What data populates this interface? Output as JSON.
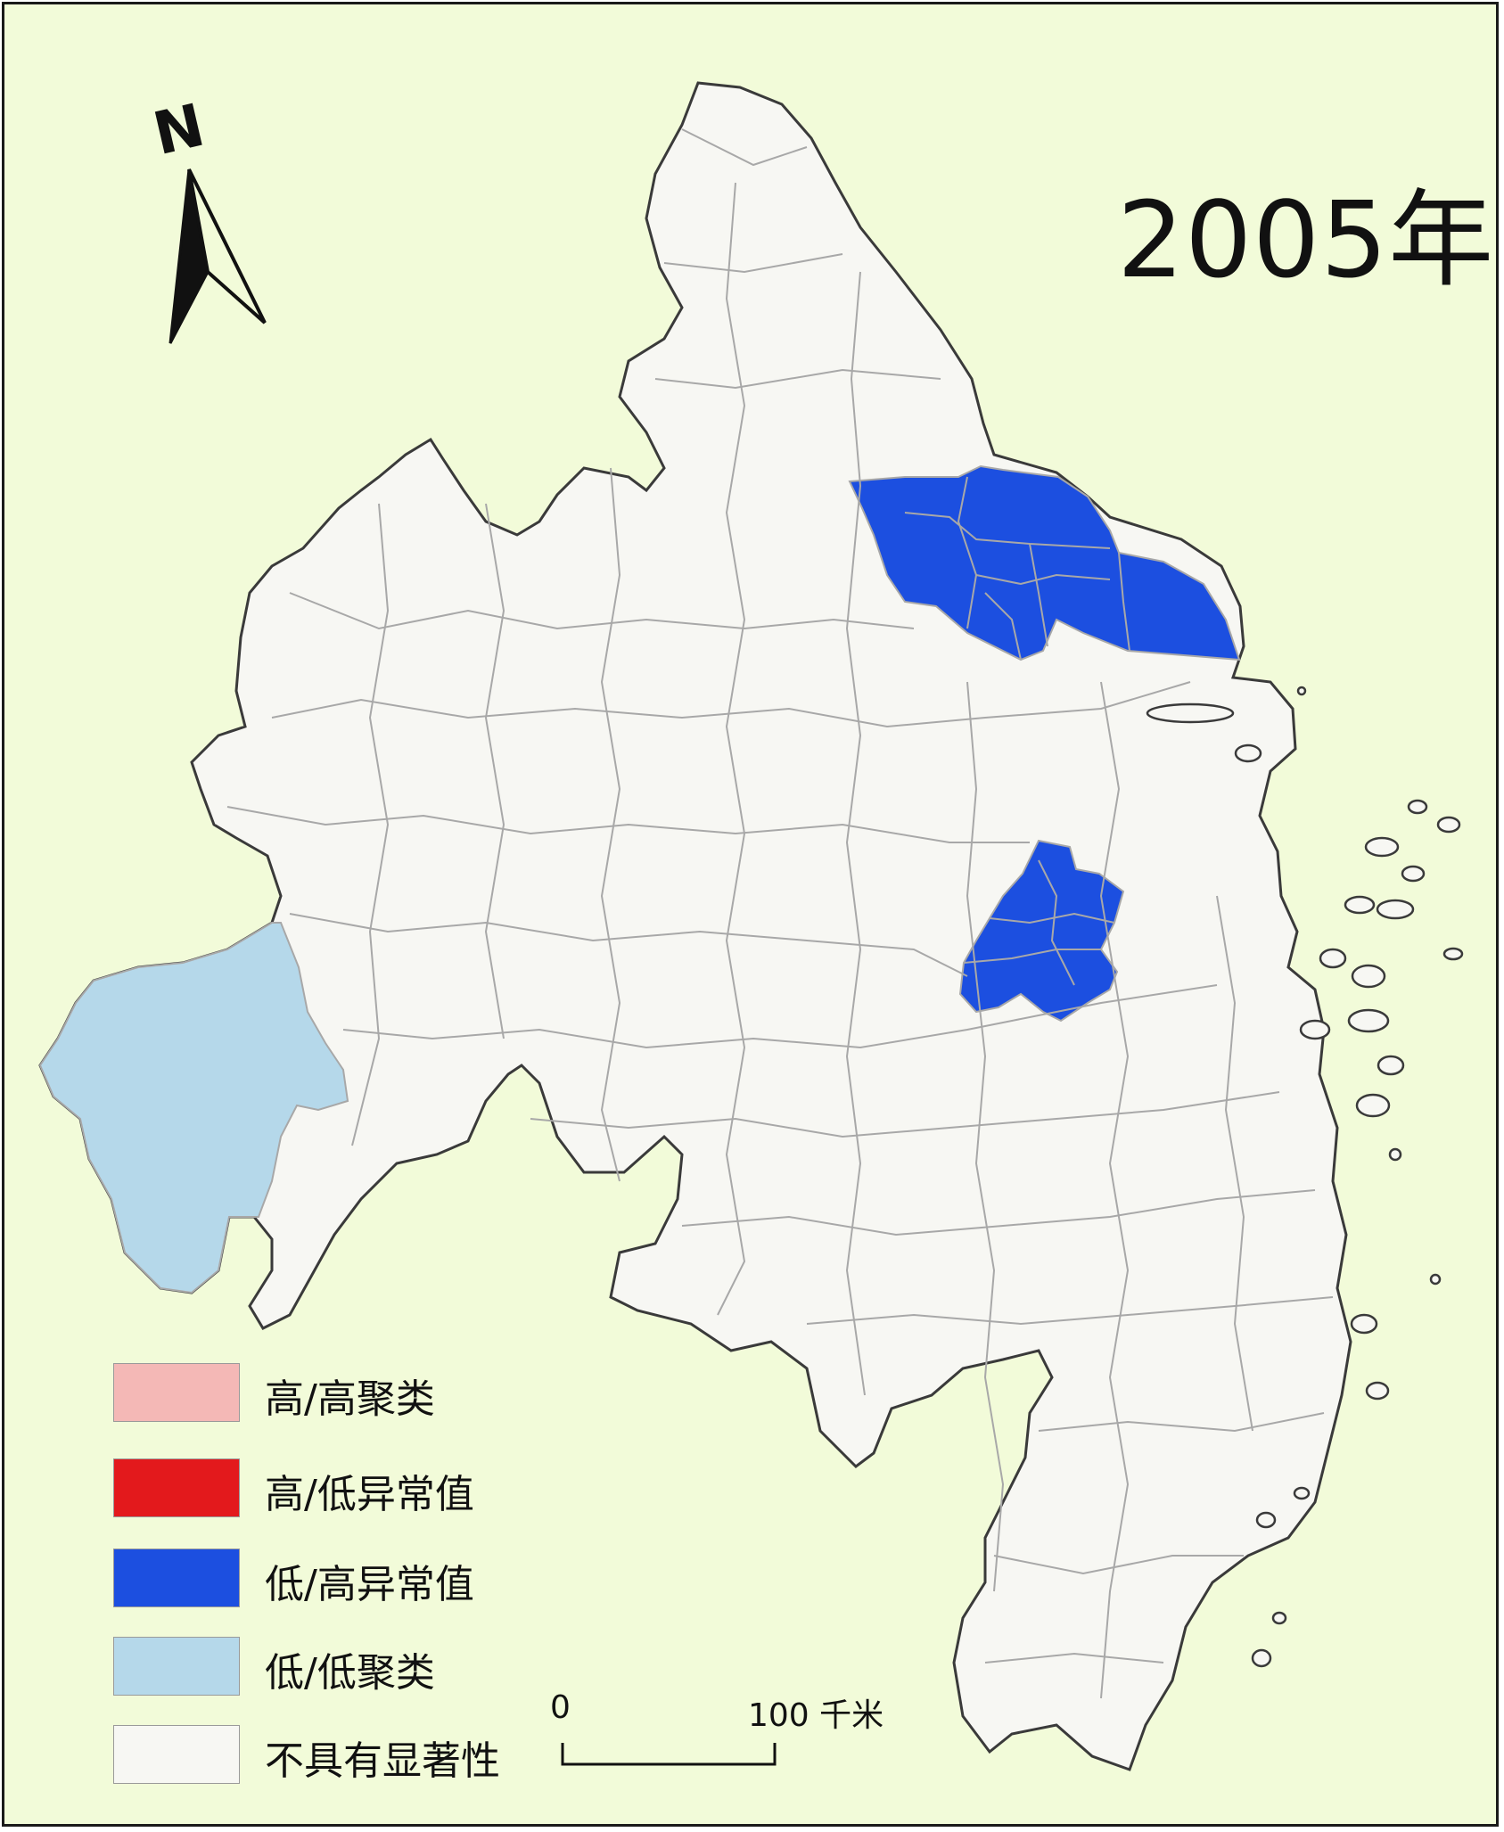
{
  "map": {
    "title": "2005年",
    "north_label": "N",
    "legend": [
      {
        "label": "高/高聚类",
        "color": "#f4b8b6"
      },
      {
        "label": "高/低异常值",
        "color": "#e3191c"
      },
      {
        "label": "低/高异常值",
        "color": "#1c4fe0"
      },
      {
        "label": "低/低聚类",
        "color": "#b5d8ea"
      },
      {
        "label": "不具有显著性",
        "color": "#f7f7f3"
      }
    ],
    "scale_bar": {
      "start_label": "0",
      "end_label": "100 千米"
    },
    "colors": {
      "background": "#f2fbd9",
      "land": "#f7f7f3",
      "border": "#a8a8a8",
      "coast": "#3a3a3a"
    }
  }
}
